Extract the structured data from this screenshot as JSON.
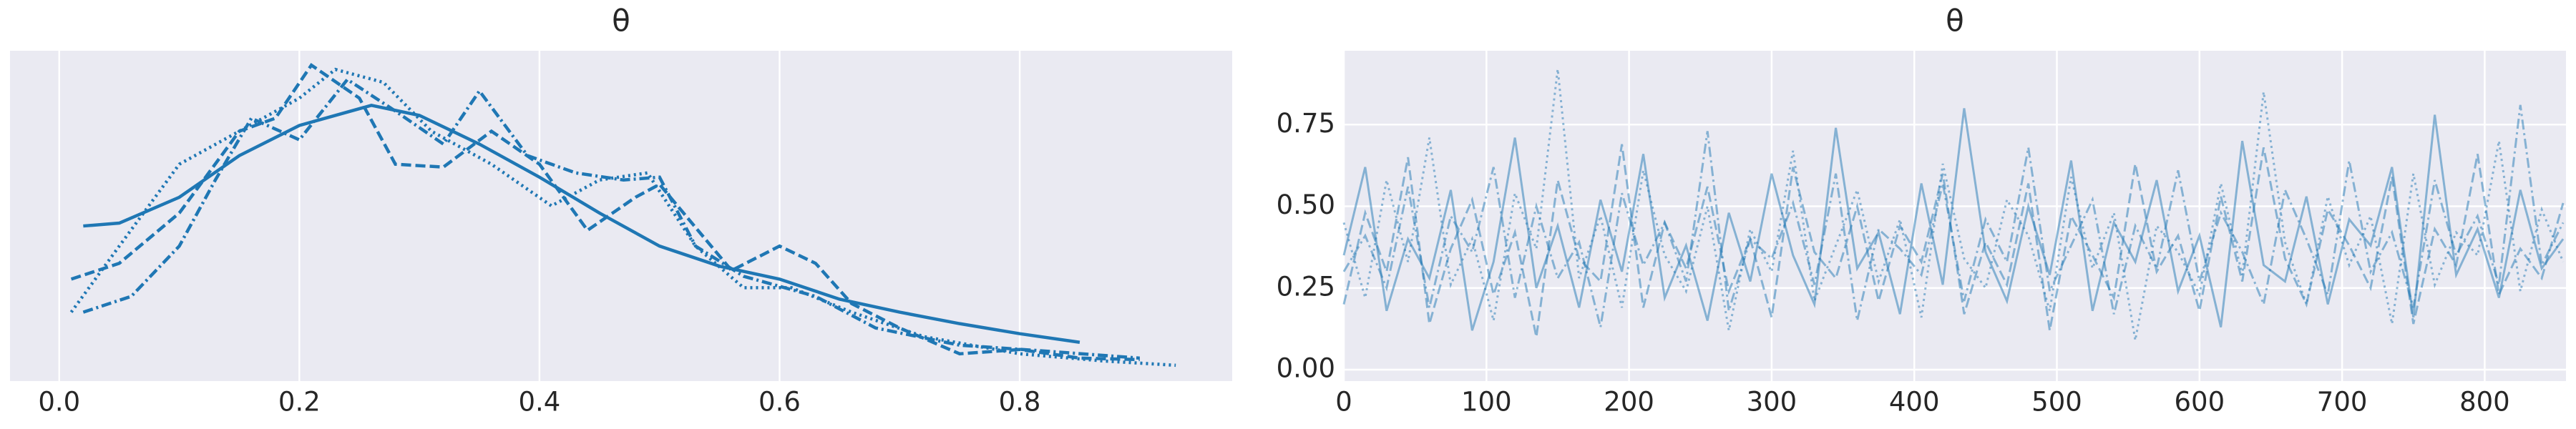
{
  "chart_data": [
    {
      "type": "kde",
      "title": "θ",
      "xlim": [
        -0.041,
        0.977
      ],
      "ylim": [
        0,
        2.3
      ],
      "xticks": [
        {
          "value": 0,
          "label": "0.0"
        },
        0.2,
        0.4,
        0.6,
        0.8
      ],
      "grid": true,
      "series": [
        {
          "color": "#1f77b4",
          "linestyle": "solid",
          "x": [
            0.02,
            0.05,
            0.1,
            0.15,
            0.2,
            0.26,
            0.3,
            0.35,
            0.4,
            0.45,
            0.5,
            0.55,
            0.6,
            0.65,
            0.7,
            0.75,
            0.8,
            0.85
          ],
          "values": [
            1.08,
            1.1,
            1.28,
            1.57,
            1.78,
            1.92,
            1.85,
            1.65,
            1.42,
            1.17,
            0.94,
            0.8,
            0.71,
            0.57,
            0.48,
            0.4,
            0.33,
            0.27
          ]
        },
        {
          "color": "#1f77b4",
          "linestyle": "dashed",
          "x": [
            0.01,
            0.05,
            0.1,
            0.15,
            0.18,
            0.21,
            0.25,
            0.28,
            0.32,
            0.36,
            0.4,
            0.44,
            0.48,
            0.5,
            0.52,
            0.56,
            0.6,
            0.63,
            0.66,
            0.7,
            0.75,
            0.8,
            0.85,
            0.9
          ],
          "values": [
            0.71,
            0.82,
            1.17,
            1.74,
            1.83,
            2.2,
            1.97,
            1.51,
            1.49,
            1.74,
            1.51,
            1.05,
            1.28,
            1.37,
            1.17,
            0.77,
            0.94,
            0.82,
            0.54,
            0.37,
            0.19,
            0.22,
            0.16,
            0.15
          ]
        },
        {
          "color": "#1f77b4",
          "linestyle": "dotted",
          "x": [
            0.01,
            0.05,
            0.1,
            0.15,
            0.2,
            0.23,
            0.27,
            0.31,
            0.36,
            0.41,
            0.45,
            0.49,
            0.53,
            0.57,
            0.61,
            0.66,
            0.72,
            0.8,
            0.87,
            0.93
          ],
          "values": [
            0.48,
            0.94,
            1.51,
            1.74,
            1.97,
            2.17,
            2.08,
            1.74,
            1.51,
            1.22,
            1.4,
            1.45,
            0.94,
            0.65,
            0.65,
            0.48,
            0.31,
            0.19,
            0.14,
            0.11
          ]
        },
        {
          "color": "#1f77b4",
          "linestyle": "dashdot",
          "x": [
            0.02,
            0.06,
            0.1,
            0.13,
            0.16,
            0.2,
            0.24,
            0.28,
            0.32,
            0.35,
            0.39,
            0.43,
            0.47,
            0.5,
            0.53,
            0.57,
            0.63,
            0.68,
            0.75,
            0.82,
            0.9
          ],
          "values": [
            0.48,
            0.59,
            0.94,
            1.4,
            1.83,
            1.68,
            2.1,
            1.88,
            1.65,
            2.02,
            1.57,
            1.45,
            1.4,
            1.42,
            0.94,
            0.73,
            0.59,
            0.37,
            0.25,
            0.21,
            0.16
          ]
        }
      ]
    },
    {
      "type": "line",
      "title": "θ",
      "xlim": [
        0,
        857
      ],
      "ylim": [
        -0.035,
        0.976
      ],
      "xticks": [
        0,
        100,
        200,
        300,
        400,
        500,
        600,
        700,
        800
      ],
      "yticks": [
        {
          "value": 0,
          "label": "0.00"
        },
        {
          "value": 0.25,
          "label": "0.25"
        },
        {
          "value": 0.5,
          "label": "0.50"
        },
        {
          "value": 0.75,
          "label": "0.75"
        }
      ],
      "grid": true,
      "x": [
        0,
        15,
        30,
        45,
        60,
        75,
        90,
        105,
        120,
        135,
        150,
        165,
        180,
        195,
        210,
        225,
        240,
        255,
        270,
        285,
        300,
        315,
        330,
        345,
        360,
        375,
        390,
        405,
        420,
        435,
        450,
        465,
        480,
        495,
        510,
        525,
        540,
        555,
        570,
        585,
        600,
        615,
        630,
        645,
        660,
        675,
        690,
        705,
        720,
        735,
        750,
        765,
        780,
        795,
        810,
        825,
        840,
        855
      ],
      "series": [
        {
          "color": "#1f77b4",
          "linestyle": "solid",
          "values": [
            0.35,
            0.62,
            0.18,
            0.4,
            0.28,
            0.55,
            0.12,
            0.33,
            0.71,
            0.25,
            0.44,
            0.19,
            0.52,
            0.3,
            0.66,
            0.22,
            0.38,
            0.15,
            0.48,
            0.27,
            0.6,
            0.35,
            0.2,
            0.74,
            0.31,
            0.42,
            0.17,
            0.57,
            0.26,
            0.8,
            0.36,
            0.21,
            0.5,
            0.29,
            0.64,
            0.18,
            0.45,
            0.33,
            0.58,
            0.24,
            0.41,
            0.13,
            0.7,
            0.32,
            0.27,
            0.53,
            0.2,
            0.46,
            0.38,
            0.62,
            0.16,
            0.78,
            0.29,
            0.43,
            0.22,
            0.55,
            0.31,
            0.4
          ]
        },
        {
          "color": "#1f77b4",
          "linestyle": "dashed",
          "values": [
            0.2,
            0.48,
            0.3,
            0.65,
            0.14,
            0.37,
            0.52,
            0.23,
            0.42,
            0.1,
            0.58,
            0.34,
            0.27,
            0.69,
            0.19,
            0.45,
            0.31,
            0.56,
            0.24,
            0.4,
            0.16,
            0.62,
            0.36,
            0.28,
            0.5,
            0.21,
            0.44,
            0.33,
            0.6,
            0.17,
            0.39,
            0.26,
            0.57,
            0.12,
            0.47,
            0.35,
            0.22,
            0.63,
            0.3,
            0.41,
            0.18,
            0.53,
            0.27,
            0.68,
            0.34,
            0.2,
            0.49,
            0.38,
            0.25,
            0.59,
            0.14,
            0.43,
            0.32,
            0.66,
            0.23,
            0.37,
            0.28,
            0.51
          ]
        },
        {
          "color": "#1f77b4",
          "linestyle": "dotted",
          "values": [
            0.45,
            0.22,
            0.58,
            0.33,
            0.71,
            0.26,
            0.4,
            0.15,
            0.54,
            0.37,
            0.92,
            0.28,
            0.47,
            0.19,
            0.61,
            0.35,
            0.24,
            0.5,
            0.12,
            0.43,
            0.3,
            0.67,
            0.21,
            0.38,
            0.55,
            0.27,
            0.46,
            0.16,
            0.63,
            0.34,
            0.25,
            0.52,
            0.41,
            0.18,
            0.59,
            0.31,
            0.48,
            0.09,
            0.44,
            0.36,
            0.23,
            0.57,
            0.29,
            0.85,
            0.39,
            0.2,
            0.53,
            0.32,
            0.47,
            0.14,
            0.6,
            0.26,
            0.42,
            0.35,
            0.7,
            0.24,
            0.49,
            0.33
          ]
        },
        {
          "color": "#1f77b4",
          "linestyle": "dashdot",
          "values": [
            0.3,
            0.41,
            0.25,
            0.56,
            0.19,
            0.47,
            0.36,
            0.62,
            0.22,
            0.5,
            0.28,
            0.39,
            0.13,
            0.54,
            0.32,
            0.45,
            0.27,
            0.73,
            0.18,
            0.4,
            0.34,
            0.51,
            0.26,
            0.6,
            0.15,
            0.43,
            0.37,
            0.29,
            0.57,
            0.21,
            0.46,
            0.33,
            0.68,
            0.24,
            0.38,
            0.52,
            0.17,
            0.44,
            0.31,
            0.61,
            0.27,
            0.48,
            0.36,
            0.2,
            0.55,
            0.4,
            0.23,
            0.64,
            0.3,
            0.42,
            0.19,
            0.58,
            0.35,
            0.47,
            0.26,
            0.81,
            0.32,
            0.45
          ]
        }
      ]
    }
  ]
}
